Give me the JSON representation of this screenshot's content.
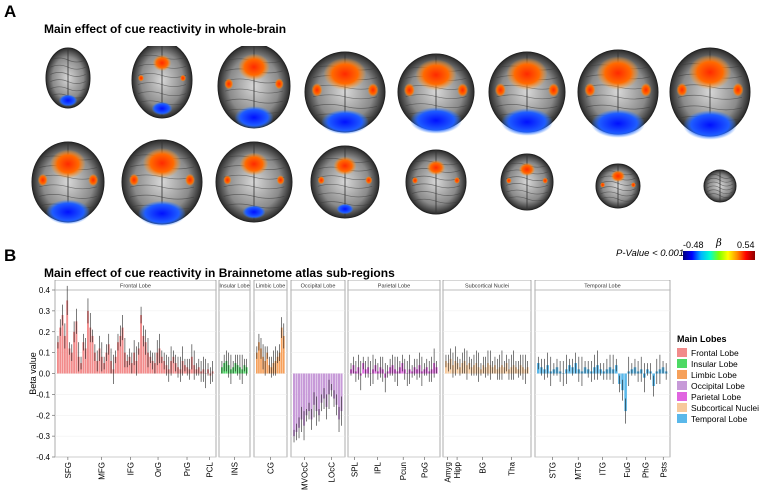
{
  "panel_a": {
    "letter": "A",
    "title": "Main effect of cue reactivity in whole-brain",
    "p_value": "P-Value < 0.001",
    "colorbar": {
      "min": "-0.48",
      "max": "0.54",
      "symbol": "β"
    }
  },
  "panel_b": {
    "letter": "B",
    "title": "Main effect of cue reactivity in Brainnetome atlas sub-regions"
  },
  "chart_data": {
    "type": "bar",
    "ylabel": "Beta value",
    "ylim": [
      -0.4,
      0.4
    ],
    "yticks": [
      "0.4",
      "0.3",
      "0.2",
      "0.1",
      "0.0",
      "-0.1",
      "-0.2",
      "-0.3",
      "-0.4"
    ],
    "lobes": [
      {
        "name": "Frontal Lobe",
        "color": "#f28b8b",
        "bars": 68,
        "values": [
          0.15,
          0.22,
          0.28,
          0.18,
          0.35,
          0.12,
          0.1,
          0.2,
          0.25,
          0.08,
          0.05,
          0.15,
          0.12,
          0.3,
          0.22,
          0.18,
          0.1,
          0.06,
          0.12,
          0.08,
          0.05,
          0.1,
          0.14,
          0.06,
          0.02,
          0.08,
          0.15,
          0.18,
          0.22,
          0.1,
          0.06,
          0.08,
          0.05,
          0.1,
          0.06,
          0.12,
          0.28,
          0.18,
          0.15,
          0.1,
          0.08,
          0.06,
          0.05,
          0.1,
          0.12,
          0.08,
          0.06,
          0.04,
          0.02,
          0.06,
          0.08,
          0.05,
          0.03,
          0.02,
          0.06,
          0.04,
          0.03,
          0.02,
          0.08,
          0.04,
          0.02,
          0.03,
          0.01,
          0.02,
          0.0,
          0.02,
          -0.01,
          0.01
        ],
        "ticks": [
          {
            "label": "SFG",
            "pos": 0.08
          },
          {
            "label": "MFG",
            "pos": 0.29
          },
          {
            "label": "IFG",
            "pos": 0.47
          },
          {
            "label": "OrG",
            "pos": 0.64
          },
          {
            "label": "PrG",
            "pos": 0.82
          },
          {
            "label": "PCL",
            "pos": 0.96
          }
        ]
      },
      {
        "name": "Insular Lobe",
        "color": "#4cd964",
        "bars": 12,
        "values": [
          0.03,
          0.05,
          0.06,
          0.04,
          0.02,
          0.03,
          0.05,
          0.04,
          0.03,
          0.02,
          0.04,
          0.03
        ],
        "ticks": [
          {
            "label": "INS",
            "pos": 0.5
          }
        ]
      },
      {
        "name": "Limbic Lobe",
        "color": "#f6a05a",
        "bars": 14,
        "values": [
          0.1,
          0.15,
          0.12,
          0.08,
          0.06,
          0.1,
          0.04,
          0.03,
          0.05,
          0.06,
          0.08,
          0.1,
          0.22,
          0.18
        ],
        "ticks": [
          {
            "label": "CG",
            "pos": 0.5
          }
        ]
      },
      {
        "name": "Occipital Lobe",
        "color": "#c79ad8",
        "bars": 20,
        "values": [
          -0.3,
          -0.28,
          -0.26,
          -0.22,
          -0.25,
          -0.2,
          -0.18,
          -0.22,
          -0.15,
          -0.18,
          -0.2,
          -0.14,
          -0.12,
          -0.16,
          -0.1,
          -0.08,
          -0.12,
          -0.15,
          -0.22,
          -0.18
        ],
        "ticks": [
          {
            "label": "MVOcC",
            "pos": 0.25
          },
          {
            "label": "LOcC",
            "pos": 0.75
          }
        ]
      },
      {
        "name": "Parietal Lobe",
        "color": "#e065e0",
        "bars": 36,
        "values": [
          0.02,
          0.04,
          0.01,
          0.03,
          -0.01,
          0.05,
          0.02,
          0.03,
          0.0,
          0.02,
          0.04,
          0.01,
          0.03,
          0.02,
          -0.02,
          0.01,
          0.03,
          0.04,
          0.02,
          0.01,
          0.03,
          0.05,
          0.02,
          0.0,
          0.02,
          0.01,
          0.03,
          0.02,
          0.04,
          0.01,
          0.02,
          0.03,
          0.01,
          0.02,
          0.05,
          0.03
        ],
        "ticks": [
          {
            "label": "SPL",
            "pos": 0.07
          },
          {
            "label": "IPL",
            "pos": 0.32
          },
          {
            "label": "Pcun",
            "pos": 0.6
          },
          {
            "label": "PoG",
            "pos": 0.83
          }
        ]
      },
      {
        "name": "Subcortical Nuclei",
        "color": "#f7c99b",
        "bars": 36,
        "values": [
          0.06,
          0.05,
          0.07,
          0.04,
          0.06,
          0.05,
          0.03,
          0.05,
          0.06,
          0.04,
          0.05,
          0.03,
          0.04,
          0.05,
          0.03,
          0.02,
          0.04,
          0.03,
          0.05,
          0.04,
          0.03,
          0.04,
          0.02,
          0.03,
          0.04,
          0.03,
          0.05,
          0.02,
          0.03,
          0.04,
          0.03,
          0.02,
          0.04,
          0.03,
          0.02,
          0.03
        ],
        "ticks": [
          {
            "label": "Amyg",
            "pos": 0.05
          },
          {
            "label": "Hipp",
            "pos": 0.16
          },
          {
            "label": "BG",
            "pos": 0.45
          },
          {
            "label": "Tha",
            "pos": 0.78
          }
        ]
      },
      {
        "name": "Temporal Lobe",
        "color": "#5ab8ea",
        "bars": 42,
        "values": [
          0.05,
          0.03,
          0.02,
          0.04,
          0.01,
          0.02,
          0.03,
          0.01,
          0.0,
          0.02,
          0.04,
          0.03,
          0.05,
          0.02,
          0.01,
          0.03,
          0.02,
          0.01,
          0.03,
          0.04,
          0.02,
          0.01,
          0.02,
          0.03,
          0.02,
          0.04,
          -0.05,
          -0.08,
          -0.18,
          0.01,
          0.02,
          0.03,
          0.01,
          0.02,
          -0.02,
          0.02,
          0.01,
          -0.06,
          0.01,
          0.02,
          0.03,
          0.01
        ],
        "ticks": [
          {
            "label": "STG",
            "pos": 0.13
          },
          {
            "label": "MTG",
            "pos": 0.32
          },
          {
            "label": "ITG",
            "pos": 0.5
          },
          {
            "label": "FuG",
            "pos": 0.68
          },
          {
            "label": "PhG",
            "pos": 0.82
          },
          {
            "label": "Psts",
            "pos": 0.95
          }
        ]
      }
    ],
    "legend": {
      "title": "Main Lobes",
      "placement": "right"
    }
  }
}
